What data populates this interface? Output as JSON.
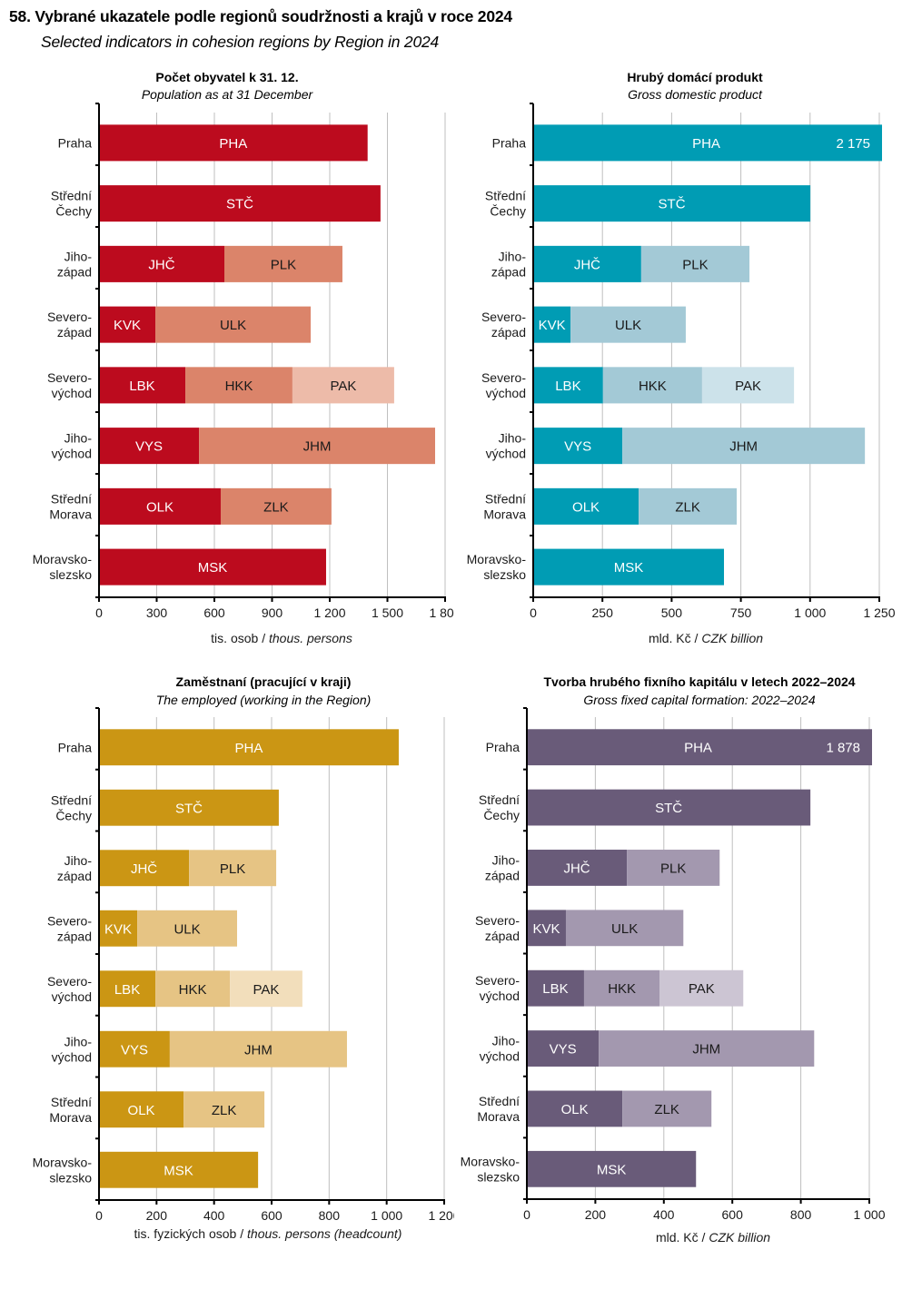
{
  "title": "58. Vybrané ukazatele podle regionů soudržnosti a krajů v roce 2024",
  "subtitle": "Selected indicators in cohesion regions by Region in 2024",
  "chart_data": [
    {
      "type": "bar",
      "stacked": true,
      "orientation": "horizontal",
      "title": "Počet obyvatel k 31. 12.",
      "subtitle": "Population as at 31 December",
      "xlabel_cz": "tis. osob / ",
      "xlabel_en": "thous. persons",
      "xlim": [
        0,
        1800
      ],
      "xticks": [
        0,
        300,
        600,
        900,
        1200,
        1500,
        1800
      ],
      "tick_labels": [
        "0",
        "300",
        "600",
        "900",
        "1 200",
        "1 500",
        "1 800"
      ],
      "grid": true,
      "colors": [
        "#BC0B1E",
        "#DB846A",
        "#EDBBA9"
      ],
      "categories": [
        "Praha",
        "Střední|Čechy",
        "Jiho-|západ",
        "Severo-|západ",
        "Severo-|východ",
        "Jiho-|východ",
        "Střední|Morava",
        "Moravsko-|slezsko"
      ],
      "segments": [
        [
          {
            "label": "PHA",
            "value": 1397
          }
        ],
        [
          {
            "label": "STČ",
            "value": 1464
          }
        ],
        [
          {
            "label": "JHČ",
            "value": 652
          },
          {
            "label": "PLK",
            "value": 614
          }
        ],
        [
          {
            "label": "KVK",
            "value": 293
          },
          {
            "label": "ULK",
            "value": 808
          }
        ],
        [
          {
            "label": "LBK",
            "value": 449
          },
          {
            "label": "HKK",
            "value": 557
          },
          {
            "label": "PAK",
            "value": 529
          }
        ],
        [
          {
            "label": "VYS",
            "value": 520
          },
          {
            "label": "JHM",
            "value": 1228
          }
        ],
        [
          {
            "label": "OLK",
            "value": 633
          },
          {
            "label": "ZLK",
            "value": 576
          }
        ],
        [
          {
            "label": "MSK",
            "value": 1181
          }
        ]
      ],
      "annotations": []
    },
    {
      "type": "bar",
      "stacked": true,
      "orientation": "horizontal",
      "title": "Hrubý domácí produkt",
      "subtitle": "Gross domestic product",
      "xlabel_cz": "mld. Kč / ",
      "xlabel_en": "CZK billion",
      "xlim": [
        0,
        1250
      ],
      "xticks": [
        0,
        250,
        500,
        750,
        1000,
        1250
      ],
      "tick_labels": [
        "0",
        "250",
        "500",
        "750",
        "1 000",
        "1 250"
      ],
      "grid": true,
      "colors": [
        "#009CB4",
        "#A3C9D6",
        "#CCE2EA"
      ],
      "categories": [
        "Praha",
        "Střední|Čechy",
        "Jiho-|západ",
        "Severo-|západ",
        "Severo-|východ",
        "Jiho-|východ",
        "Střední|Morava",
        "Moravsko-|slezsko"
      ],
      "segments": [
        [
          {
            "label": "PHA",
            "value": 2175
          }
        ],
        [
          {
            "label": "STČ",
            "value": 1001
          }
        ],
        [
          {
            "label": "JHČ",
            "value": 390
          },
          {
            "label": "PLK",
            "value": 391
          }
        ],
        [
          {
            "label": "KVK",
            "value": 135
          },
          {
            "label": "ULK",
            "value": 416
          }
        ],
        [
          {
            "label": "LBK",
            "value": 252
          },
          {
            "label": "HKK",
            "value": 358
          },
          {
            "label": "PAK",
            "value": 332
          }
        ],
        [
          {
            "label": "VYS",
            "value": 322
          },
          {
            "label": "JHM",
            "value": 876
          }
        ],
        [
          {
            "label": "OLK",
            "value": 381
          },
          {
            "label": "ZLK",
            "value": 354
          }
        ],
        [
          {
            "label": "MSK",
            "value": 689
          }
        ]
      ],
      "annotations": [
        {
          "row": 0,
          "text": "2 175"
        }
      ]
    },
    {
      "type": "bar",
      "stacked": true,
      "orientation": "horizontal",
      "title": "Zaměstnaní  (pracující  v kraji)",
      "subtitle": "The employed (working in the Region)",
      "xlabel_cz": "tis. fyzických  osob / ",
      "xlabel_en": "thous. persons (headcount)",
      "xlim": [
        0,
        1200
      ],
      "xticks": [
        0,
        200,
        400,
        600,
        800,
        1000,
        1200
      ],
      "tick_labels": [
        "0",
        "200",
        "400",
        "600",
        "800",
        "1 000",
        "1 200"
      ],
      "grid": true,
      "colors": [
        "#CB9614",
        "#E6C484",
        "#F2DEBB"
      ],
      "categories": [
        "Praha",
        "Střední|Čechy",
        "Jiho-|západ",
        "Severo-|západ",
        "Severo-|východ",
        "Jiho-|východ",
        "Střední|Morava",
        "Moravsko-|slezsko"
      ],
      "segments": [
        [
          {
            "label": "PHA",
            "value": 1042
          }
        ],
        [
          {
            "label": "STČ",
            "value": 625
          }
        ],
        [
          {
            "label": "JHČ",
            "value": 313
          },
          {
            "label": "PLK",
            "value": 303
          }
        ],
        [
          {
            "label": "KVK",
            "value": 133
          },
          {
            "label": "ULK",
            "value": 347
          }
        ],
        [
          {
            "label": "LBK",
            "value": 196
          },
          {
            "label": "HKK",
            "value": 259
          },
          {
            "label": "PAK",
            "value": 252
          }
        ],
        [
          {
            "label": "VYS",
            "value": 246
          },
          {
            "label": "JHM",
            "value": 616
          }
        ],
        [
          {
            "label": "OLK",
            "value": 294
          },
          {
            "label": "ZLK",
            "value": 281
          }
        ],
        [
          {
            "label": "MSK",
            "value": 553
          }
        ]
      ],
      "annotations": []
    },
    {
      "type": "bar",
      "stacked": true,
      "orientation": "horizontal",
      "title": "Tvorba hrubého fixního  kapitálu v letech 2022–2024",
      "subtitle": "Gross fixed capital formation: 2022–2024",
      "xlabel_cz": "mld. Kč / ",
      "xlabel_en": "CZK billion",
      "xlim": [
        0,
        1000
      ],
      "xticks": [
        0,
        200,
        400,
        600,
        800,
        1000
      ],
      "tick_labels": [
        "0",
        "200",
        "400",
        "600",
        "800",
        "1 000"
      ],
      "grid": true,
      "colors": [
        "#695B79",
        "#A398AF",
        "#CCC5D3"
      ],
      "categories": [
        "Praha",
        "Střední|Čechy",
        "Jiho-|západ",
        "Severo-|západ",
        "Severo-|východ",
        "Jiho-|východ",
        "Střední|Morava",
        "Moravsko-|slezsko"
      ],
      "segments": [
        [
          {
            "label": "PHA",
            "value": 1878
          }
        ],
        [
          {
            "label": "STČ",
            "value": 828
          }
        ],
        [
          {
            "label": "JHČ",
            "value": 292
          },
          {
            "label": "PLK",
            "value": 271
          }
        ],
        [
          {
            "label": "KVK",
            "value": 114
          },
          {
            "label": "ULK",
            "value": 343
          }
        ],
        [
          {
            "label": "LBK",
            "value": 167
          },
          {
            "label": "HKK",
            "value": 221
          },
          {
            "label": "PAK",
            "value": 244
          }
        ],
        [
          {
            "label": "VYS",
            "value": 210
          },
          {
            "label": "JHM",
            "value": 629
          }
        ],
        [
          {
            "label": "OLK",
            "value": 279
          },
          {
            "label": "ZLK",
            "value": 260
          }
        ],
        [
          {
            "label": "MSK",
            "value": 494
          }
        ]
      ],
      "annotations": [
        {
          "row": 0,
          "text": "1 878"
        }
      ]
    }
  ]
}
